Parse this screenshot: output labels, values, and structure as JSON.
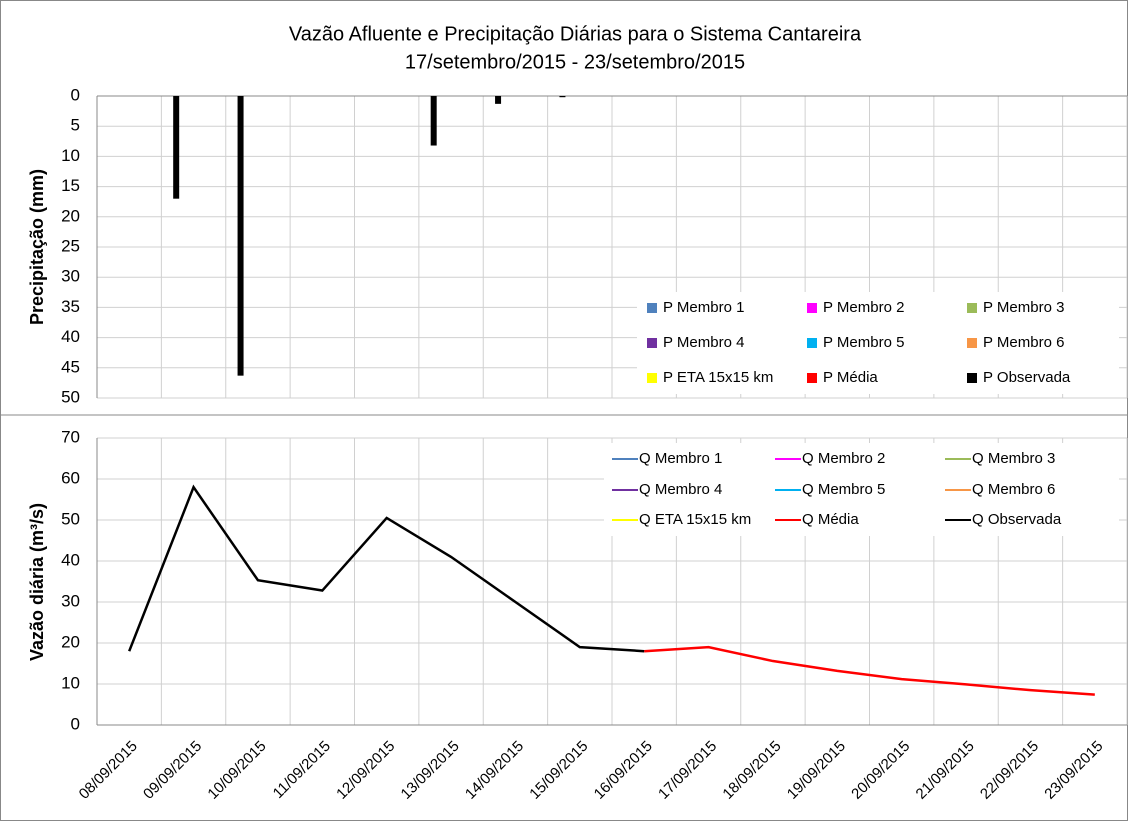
{
  "chart_data": [
    {
      "type": "bar",
      "title": "Vazão Afluente e Precipitação Diárias para o Sistema Cantareira",
      "subtitle": "17/setembro/2015 - 23/setembro/2015",
      "y_label": "Precipitação (mm)",
      "ylim": [
        0,
        50
      ],
      "yticks": [
        0,
        5,
        10,
        15,
        20,
        25,
        30,
        35,
        40,
        45,
        50
      ],
      "y_inverted": true,
      "grid": true,
      "series": [
        {
          "name": "P Membro 1",
          "color": "#4f81bd",
          "values": [
            null,
            null,
            null,
            null,
            null,
            null,
            null,
            null,
            null,
            null,
            null,
            null,
            null,
            null,
            null,
            null
          ]
        },
        {
          "name": "P Membro 2",
          "color": "#ff00ff",
          "values": [
            null,
            null,
            null,
            null,
            null,
            null,
            null,
            null,
            null,
            null,
            null,
            null,
            null,
            null,
            null,
            null
          ]
        },
        {
          "name": "P Membro 3",
          "color": "#9bbb59",
          "values": [
            null,
            null,
            null,
            null,
            null,
            null,
            null,
            null,
            null,
            null,
            null,
            null,
            null,
            null,
            null,
            null
          ]
        },
        {
          "name": "P Membro 4",
          "color": "#7030a0",
          "values": [
            null,
            null,
            null,
            null,
            null,
            null,
            null,
            null,
            null,
            null,
            null,
            null,
            null,
            null,
            null,
            null
          ]
        },
        {
          "name": "P Membro 5",
          "color": "#00b0f0",
          "values": [
            null,
            null,
            null,
            null,
            null,
            null,
            null,
            null,
            null,
            null,
            null,
            null,
            null,
            null,
            null,
            null
          ]
        },
        {
          "name": "P Membro 6",
          "color": "#f79646",
          "values": [
            null,
            null,
            null,
            null,
            null,
            null,
            null,
            null,
            null,
            null,
            null,
            null,
            null,
            null,
            null,
            null
          ]
        },
        {
          "name": "P ETA 15x15 km",
          "color": "#ffff00",
          "values": [
            null,
            null,
            null,
            null,
            null,
            null,
            null,
            null,
            null,
            null,
            null,
            null,
            null,
            null,
            null,
            null
          ]
        },
        {
          "name": "P Média",
          "color": "#ff0000",
          "values": [
            null,
            null,
            null,
            null,
            null,
            null,
            null,
            null,
            null,
            null,
            null,
            null,
            null,
            null,
            null,
            null
          ]
        },
        {
          "name": "P Observada",
          "color": "#000000",
          "values": [
            17,
            46.3,
            0,
            0,
            8.2,
            1.3,
            0.2,
            0,
            0,
            null,
            null,
            null,
            null,
            null,
            null,
            null
          ]
        }
      ]
    },
    {
      "type": "line",
      "y_label": "Vazão diária (m³/s)",
      "ylim": [
        0,
        70
      ],
      "yticks": [
        0,
        10,
        20,
        30,
        40,
        50,
        60,
        70
      ],
      "grid": true,
      "categories": [
        "08/09/2015",
        "09/09/2015",
        "10/09/2015",
        "11/09/2015",
        "12/09/2015",
        "13/09/2015",
        "14/09/2015",
        "15/09/2015",
        "16/09/2015",
        "17/09/2015",
        "18/09/2015",
        "19/09/2015",
        "20/09/2015",
        "21/09/2015",
        "22/09/2015",
        "23/09/2015"
      ],
      "series": [
        {
          "name": "Q Membro 1",
          "color": "#4f81bd",
          "values": [
            null,
            null,
            null,
            null,
            null,
            null,
            null,
            null,
            null,
            null,
            null,
            null,
            null,
            null,
            null,
            null
          ]
        },
        {
          "name": "Q Membro 2",
          "color": "#ff00ff",
          "values": [
            null,
            null,
            null,
            null,
            null,
            null,
            null,
            null,
            null,
            null,
            null,
            null,
            null,
            null,
            null,
            null
          ]
        },
        {
          "name": "Q Membro 3",
          "color": "#9bbb59",
          "values": [
            null,
            null,
            null,
            null,
            null,
            null,
            null,
            null,
            null,
            null,
            null,
            null,
            null,
            null,
            null,
            null
          ]
        },
        {
          "name": "Q Membro 4",
          "color": "#7030a0",
          "values": [
            null,
            null,
            null,
            null,
            null,
            null,
            null,
            null,
            null,
            null,
            null,
            null,
            null,
            null,
            null,
            null
          ]
        },
        {
          "name": "Q Membro 5",
          "color": "#00b0f0",
          "values": [
            null,
            null,
            null,
            null,
            null,
            null,
            null,
            null,
            null,
            null,
            null,
            null,
            null,
            null,
            null,
            null
          ]
        },
        {
          "name": "Q Membro 6",
          "color": "#f79646",
          "values": [
            null,
            null,
            null,
            null,
            null,
            null,
            null,
            null,
            null,
            null,
            null,
            null,
            null,
            null,
            null,
            null
          ]
        },
        {
          "name": "Q ETA 15x15 km",
          "color": "#ffff00",
          "values": [
            null,
            null,
            null,
            null,
            null,
            null,
            null,
            null,
            null,
            null,
            null,
            null,
            null,
            null,
            null,
            null
          ]
        },
        {
          "name": "Q Média",
          "color": "#ff0000",
          "values": [
            null,
            null,
            null,
            null,
            null,
            null,
            null,
            null,
            18,
            19,
            15.6,
            13.2,
            11.2,
            9.9,
            8.5,
            7.4
          ]
        },
        {
          "name": "Q Observada",
          "color": "#000000",
          "values": [
            18,
            58,
            35.3,
            32.8,
            50.5,
            41,
            30,
            19,
            18,
            null,
            null,
            null,
            null,
            null,
            null,
            null
          ]
        }
      ]
    }
  ]
}
